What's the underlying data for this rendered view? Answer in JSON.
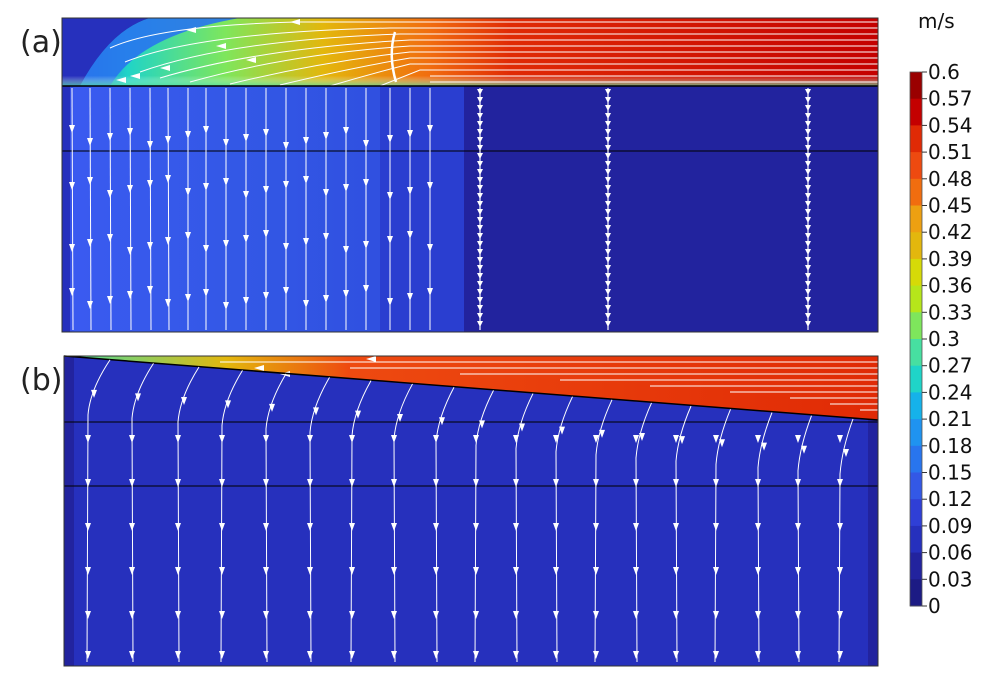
{
  "chart_data": {
    "type": "heatmap",
    "title": "",
    "panels": [
      {
        "label": "(a)",
        "description_values": {
          "free_stream_velocity": 0.58,
          "boundary_layer_velocity_range": [
            0.1,
            0.45
          ],
          "porous_region_velocity_zones": [
            0.1,
            0.07,
            0.02
          ]
        }
      },
      {
        "label": "(b)",
        "description_values": {
          "wedge_velocity": 0.56,
          "porous_region_velocity": 0.05
        }
      }
    ],
    "colorbar": {
      "unit": "m/s",
      "min": 0,
      "max": 0.6,
      "ticks": [
        "0.6",
        "0.57",
        "0.54",
        "0.51",
        "0.48",
        "0.45",
        "0.42",
        "0.39",
        "0.36",
        "0.33",
        "0.3",
        "0.27",
        "0.24",
        "0.21",
        "0.18",
        "0.15",
        "0.12",
        "0.09",
        "0.06",
        "0.03",
        "0"
      ],
      "colors": [
        "#9a0000",
        "#c40000",
        "#e02a05",
        "#ee4a10",
        "#f16d0f",
        "#eda011",
        "#e3b70d",
        "#d6da07",
        "#b6e61a",
        "#7ee65c",
        "#47dfa1",
        "#1fd4c8",
        "#15b2ea",
        "#1f93f0",
        "#2875ee",
        "#3358e6",
        "#2f3fd6",
        "#2630bd",
        "#22239e",
        "#1c1b84"
      ]
    }
  }
}
